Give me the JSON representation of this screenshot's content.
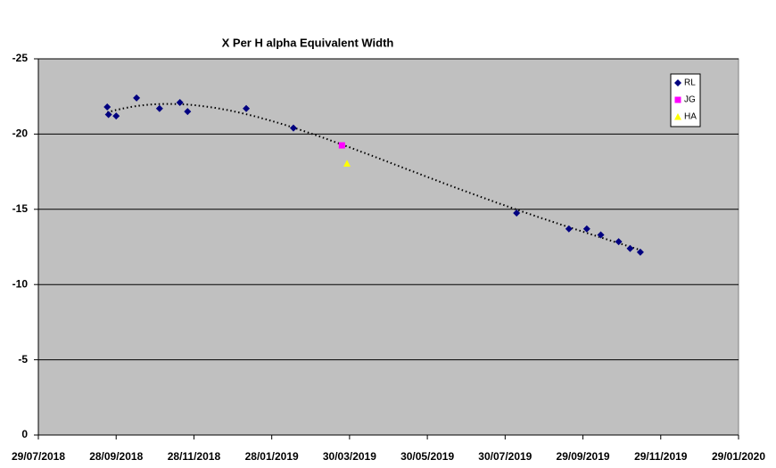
{
  "chart_data": {
    "type": "scatter",
    "title": "X Per H alpha Equivalent Width",
    "xlim": [
      "2018-07-29",
      "2020-01-29"
    ],
    "xticks": [
      {
        "value": "2018-07-29",
        "label": "29/07/2018"
      },
      {
        "value": "2018-09-28",
        "label": "28/09/2018"
      },
      {
        "value": "2018-11-28",
        "label": "28/11/2018"
      },
      {
        "value": "2019-01-28",
        "label": "28/01/2019"
      },
      {
        "value": "2019-03-30",
        "label": "30/03/2019"
      },
      {
        "value": "2019-05-30",
        "label": "30/05/2019"
      },
      {
        "value": "2019-07-30",
        "label": "30/07/2019"
      },
      {
        "value": "2019-09-29",
        "label": "29/09/2019"
      },
      {
        "value": "2019-11-29",
        "label": "29/11/2019"
      },
      {
        "value": "2020-01-29",
        "label": "29/01/2020"
      }
    ],
    "ylim": [
      0,
      -25
    ],
    "yticks": [
      -25,
      -20,
      -15,
      -10,
      -5,
      0
    ],
    "grid": true,
    "legend": "top-right",
    "trendline": {
      "series": "RL",
      "type": "polynomial",
      "order": 4
    },
    "series": [
      {
        "name": "RL",
        "color": "#000080",
        "marker": "diamond",
        "x": [
          "2018-09-21",
          "2018-09-22",
          "2018-09-28",
          "2018-10-14",
          "2018-11-01",
          "2018-11-17",
          "2018-11-23",
          "2019-01-08",
          "2019-02-14",
          "2019-08-08",
          "2019-09-18",
          "2019-10-02",
          "2019-10-13",
          "2019-10-27",
          "2019-11-05",
          "2019-11-13"
        ],
        "values": [
          -21.8,
          -21.3,
          -21.2,
          -22.4,
          -21.7,
          -22.1,
          -21.5,
          -21.7,
          -20.4,
          -14.75,
          -13.7,
          -13.7,
          -13.3,
          -12.85,
          -12.4,
          -12.15
        ]
      },
      {
        "name": "JG",
        "color": "#ff00ff",
        "marker": "square",
        "x": [
          "2019-03-24"
        ],
        "values": [
          -19.25
        ]
      },
      {
        "name": "HA",
        "color": "#ffff00",
        "marker": "triangle",
        "x": [
          "2019-03-28"
        ],
        "values": [
          -18.05
        ]
      }
    ]
  }
}
